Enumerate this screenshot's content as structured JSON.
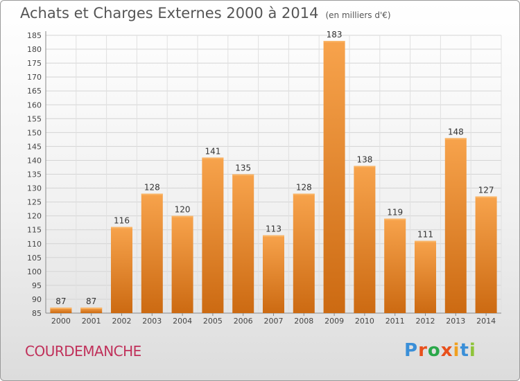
{
  "header": {
    "title": "Achats et Charges Externes 2000 à 2014",
    "unit": "(en milliers d'€)"
  },
  "footer": {
    "commune": "COURDEMANCHE",
    "logo_text": "Proxiti"
  },
  "colors": {
    "bar_top": "#f7a34c",
    "bar_bottom": "#cc6a12",
    "logo": [
      "#3a8fd8",
      "#e8501c",
      "#2aa84a",
      "#e8501c",
      "#f0a020",
      "#3a8fd8",
      "#8fc43a"
    ]
  },
  "chart_data": {
    "type": "bar",
    "title": "Achats et Charges Externes 2000 à 2014",
    "xlabel": "",
    "ylabel": "",
    "categories": [
      "2000",
      "2001",
      "2002",
      "2003",
      "2004",
      "2005",
      "2006",
      "2007",
      "2008",
      "2009",
      "2010",
      "2011",
      "2012",
      "2013",
      "2014"
    ],
    "values": [
      87,
      87,
      116,
      128,
      120,
      141,
      135,
      113,
      128,
      183,
      138,
      119,
      111,
      148,
      127
    ],
    "ylim": [
      85,
      185
    ],
    "yticks": [
      85,
      90,
      95,
      100,
      105,
      110,
      115,
      120,
      125,
      130,
      135,
      140,
      145,
      150,
      155,
      160,
      165,
      170,
      175,
      180,
      185
    ],
    "grid": true,
    "legend": "none"
  }
}
